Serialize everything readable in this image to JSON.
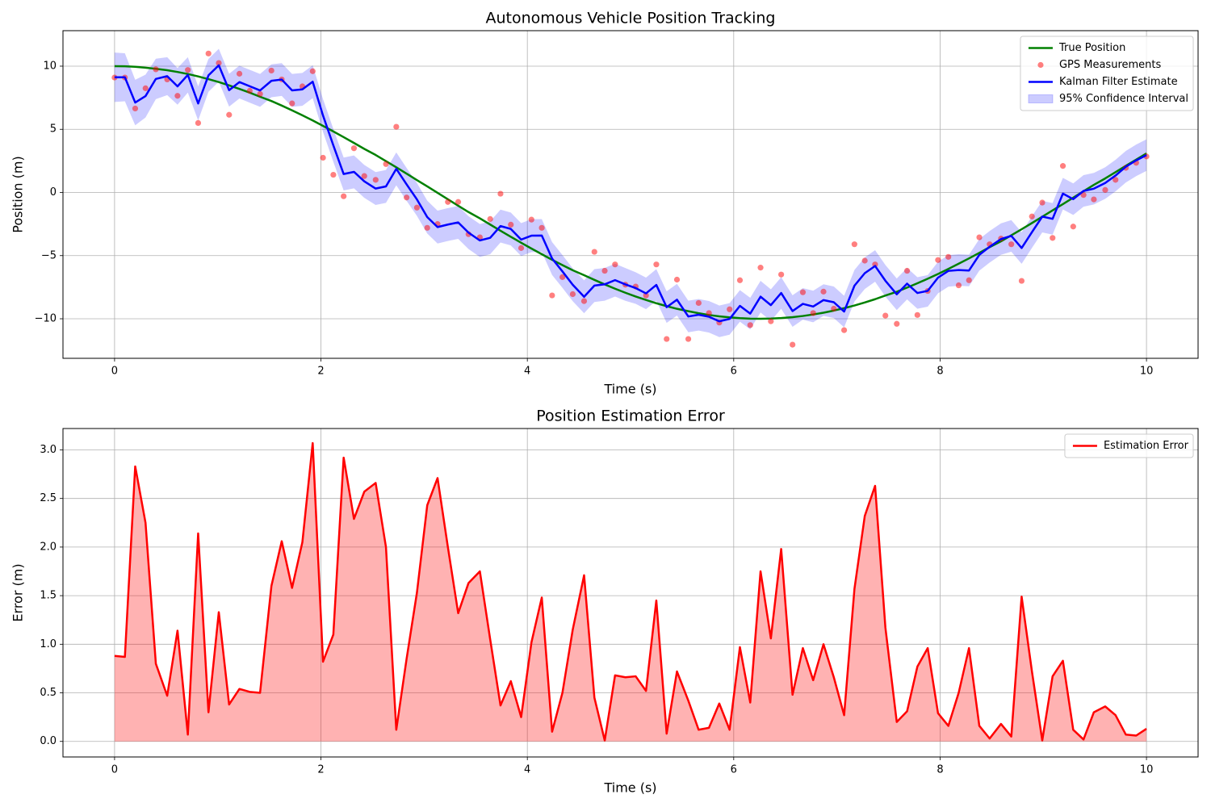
{
  "chart_data": [
    {
      "type": "line",
      "title": "Autonomous Vehicle Position Tracking",
      "xlabel": "Time (s)",
      "ylabel": "Position (m)",
      "x": [
        0,
        0.1,
        0.2,
        0.3,
        0.4,
        0.51,
        0.61,
        0.71,
        0.81,
        0.91,
        1.01,
        1.11,
        1.21,
        1.31,
        1.41,
        1.52,
        1.62,
        1.72,
        1.82,
        1.92,
        2.02,
        2.12,
        2.22,
        2.32,
        2.42,
        2.53,
        2.63,
        2.73,
        2.83,
        2.93,
        3.03,
        3.13,
        3.23,
        3.33,
        3.43,
        3.54,
        3.64,
        3.74,
        3.84,
        3.94,
        4.04,
        4.14,
        4.24,
        4.34,
        4.44,
        4.55,
        4.65,
        4.75,
        4.85,
        4.95,
        5.05,
        5.15,
        5.25,
        5.35,
        5.45,
        5.56,
        5.66,
        5.76,
        5.86,
        5.96,
        6.06,
        6.16,
        6.26,
        6.36,
        6.46,
        6.57,
        6.67,
        6.77,
        6.87,
        6.97,
        7.07,
        7.17,
        7.27,
        7.37,
        7.47,
        7.58,
        7.68,
        7.78,
        7.88,
        7.98,
        8.08,
        8.18,
        8.28,
        8.38,
        8.48,
        8.59,
        8.69,
        8.79,
        8.89,
        8.99,
        9.09,
        9.19,
        9.29,
        9.39,
        9.49,
        9.6,
        9.7,
        9.8,
        9.9,
        10
      ],
      "xlim": [
        -0.5,
        10.5
      ],
      "xticks": [
        0,
        2,
        4,
        6,
        8,
        10
      ],
      "ylim": [
        -13.13,
        12.81
      ],
      "yticks": [
        {
          "value": -10,
          "label": "−10"
        },
        {
          "value": -5,
          "label": "−5"
        },
        0,
        5,
        10
      ],
      "grid": true,
      "legend": "upper right",
      "series": [
        {
          "name": "True Position",
          "type": "line",
          "color": "#008000",
          "values": [
            10.0,
            9.99,
            9.95,
            9.88,
            9.79,
            9.68,
            9.54,
            9.38,
            9.19,
            8.97,
            8.74,
            8.48,
            8.2,
            7.9,
            7.58,
            7.24,
            6.88,
            6.5,
            6.11,
            5.7,
            5.27,
            4.83,
            4.38,
            3.92,
            3.45,
            2.97,
            2.48,
            1.99,
            1.49,
            0.98,
            0.48,
            -0.03,
            -0.54,
            -1.05,
            -1.55,
            -2.05,
            -2.54,
            -3.03,
            -3.51,
            -3.98,
            -4.44,
            -4.89,
            -5.33,
            -5.75,
            -6.16,
            -6.55,
            -6.92,
            -7.28,
            -7.62,
            -7.94,
            -8.24,
            -8.51,
            -8.77,
            -9.0,
            -9.21,
            -9.4,
            -9.56,
            -9.7,
            -9.81,
            -9.89,
            -9.95,
            -9.99,
            -10.0,
            -9.98,
            -9.94,
            -9.87,
            -9.78,
            -9.66,
            -9.52,
            -9.35,
            -9.16,
            -8.95,
            -8.71,
            -8.45,
            -8.16,
            -7.86,
            -7.53,
            -7.19,
            -6.83,
            -6.45,
            -6.05,
            -5.64,
            -5.22,
            -4.78,
            -4.33,
            -3.87,
            -3.39,
            -2.91,
            -2.42,
            -1.92,
            -1.42,
            -0.92,
            -0.41,
            0.1,
            0.6,
            1.11,
            1.61,
            2.11,
            2.6,
            3.09
          ]
        },
        {
          "name": "GPS Measurements",
          "type": "scatter",
          "color": "#ff0000",
          "alpha": 0.5,
          "values": [
            9.1,
            9.1,
            6.65,
            8.25,
            9.75,
            8.95,
            7.65,
            9.7,
            5.5,
            11.0,
            10.25,
            6.15,
            9.4,
            8.05,
            7.8,
            9.65,
            8.95,
            7.05,
            8.4,
            9.6,
            2.75,
            1.4,
            -0.3,
            3.5,
            1.3,
            1.0,
            2.25,
            5.2,
            -0.4,
            -1.2,
            -2.8,
            -2.5,
            -0.75,
            -0.75,
            -3.3,
            -3.55,
            -2.1,
            -0.1,
            -2.55,
            -4.4,
            -2.15,
            -2.8,
            -8.15,
            -6.7,
            -8.05,
            -8.6,
            -4.7,
            -6.2,
            -5.7,
            -7.3,
            -7.45,
            -8.15,
            -5.7,
            -11.6,
            -6.9,
            -11.6,
            -8.75,
            -9.55,
            -10.3,
            -9.25,
            -6.95,
            -10.5,
            -5.95,
            -10.2,
            -6.5,
            -12.05,
            -7.9,
            -9.55,
            -7.85,
            -9.2,
            -10.9,
            -4.1,
            -5.4,
            -5.7,
            -9.75,
            -10.4,
            -6.2,
            -9.7,
            -7.8,
            -5.35,
            -5.1,
            -7.35,
            -6.95,
            -3.55,
            -4.1,
            -3.65,
            -4.1,
            -7.0,
            -1.9,
            -0.8,
            -3.6,
            2.1,
            -2.7,
            -0.2,
            -0.55,
            0.2,
            1.0,
            1.95,
            2.35,
            2.85
          ]
        },
        {
          "name": "Kalman Filter Estimate",
          "type": "line",
          "color": "#0000ff",
          "values": [
            9.12,
            9.12,
            7.12,
            7.63,
            8.99,
            9.21,
            8.4,
            9.31,
            7.05,
            9.27,
            10.07,
            8.1,
            8.74,
            8.41,
            8.08,
            8.84,
            8.94,
            8.08,
            8.16,
            8.77,
            6.09,
            3.73,
            1.46,
            1.63,
            0.88,
            0.31,
            0.48,
            1.87,
            0.64,
            -0.55,
            -1.95,
            -2.74,
            -2.54,
            -2.37,
            -3.18,
            -3.8,
            -3.59,
            -2.66,
            -2.89,
            -3.73,
            -3.42,
            -3.41,
            -5.23,
            -6.25,
            -7.31,
            -8.26,
            -7.37,
            -7.27,
            -6.94,
            -7.28,
            -7.57,
            -7.99,
            -7.32,
            -9.08,
            -8.49,
            -9.82,
            -9.68,
            -9.84,
            -10.2,
            -10.01,
            -8.98,
            -9.59,
            -8.25,
            -8.92,
            -7.96,
            -9.39,
            -8.82,
            -9.03,
            -8.52,
            -8.69,
            -9.43,
            -7.38,
            -6.39,
            -5.82,
            -6.99,
            -8.06,
            -7.22,
            -7.96,
            -7.79,
            -6.74,
            -6.21,
            -6.14,
            -6.18,
            -4.94,
            -4.3,
            -3.69,
            -3.44,
            -4.4,
            -3.14,
            -1.91,
            -2.09,
            -0.09,
            -0.53,
            0.12,
            0.3,
            0.75,
            1.34,
            2.04,
            2.54,
            2.96
          ]
        },
        {
          "name": "95% Confidence Interval",
          "type": "band",
          "color": "#0000ff",
          "alpha": 0.2,
          "lower": [
            7.16,
            7.22,
            5.32,
            5.93,
            7.39,
            7.71,
            6.95,
            7.91,
            5.7,
            7.97,
            8.77,
            6.8,
            7.44,
            7.11,
            6.78,
            7.54,
            7.64,
            6.78,
            6.86,
            7.47,
            4.79,
            2.43,
            0.16,
            0.33,
            -0.42,
            -0.99,
            -0.82,
            0.57,
            -0.66,
            -1.85,
            -3.25,
            -4.04,
            -3.84,
            -3.67,
            -4.48,
            -5.1,
            -4.89,
            -3.96,
            -4.19,
            -5.03,
            -4.72,
            -4.71,
            -6.53,
            -7.55,
            -8.61,
            -9.56,
            -8.67,
            -8.57,
            -8.24,
            -8.58,
            -8.82,
            -9.24,
            -8.57,
            -10.33,
            -9.74,
            -11.07,
            -10.93,
            -11.09,
            -11.45,
            -11.26,
            -10.23,
            -10.84,
            -9.5,
            -10.17,
            -9.21,
            -10.64,
            -10.07,
            -10.28,
            -9.77,
            -9.94,
            -10.68,
            -8.63,
            -7.64,
            -7.07,
            -8.24,
            -9.31,
            -8.47,
            -9.21,
            -9.04,
            -7.99,
            -7.46,
            -7.39,
            -7.43,
            -6.19,
            -5.55,
            -4.94,
            -4.69,
            -5.65,
            -4.39,
            -3.16,
            -3.34,
            -1.34,
            -1.78,
            -1.13,
            -0.95,
            -0.5,
            0.09,
            0.79,
            1.29,
            1.71
          ],
          "upper": [
            11.08,
            11.02,
            8.92,
            9.33,
            10.59,
            10.71,
            9.85,
            10.71,
            8.4,
            10.57,
            11.37,
            9.4,
            10.04,
            9.71,
            9.38,
            10.14,
            10.24,
            9.38,
            9.46,
            10.07,
            7.39,
            5.03,
            2.76,
            2.93,
            2.18,
            1.61,
            1.78,
            3.17,
            1.94,
            0.75,
            -0.65,
            -1.44,
            -1.24,
            -1.07,
            -1.88,
            -2.5,
            -2.29,
            -1.36,
            -1.59,
            -2.43,
            -2.12,
            -2.11,
            -3.93,
            -4.95,
            -6.01,
            -6.96,
            -6.07,
            -5.97,
            -5.64,
            -5.98,
            -6.32,
            -6.74,
            -6.07,
            -7.83,
            -7.24,
            -8.57,
            -8.43,
            -8.59,
            -8.95,
            -8.76,
            -7.73,
            -8.34,
            -7.0,
            -7.67,
            -6.71,
            -8.14,
            -7.57,
            -7.78,
            -7.27,
            -7.44,
            -8.18,
            -6.13,
            -5.14,
            -4.57,
            -5.74,
            -6.81,
            -5.97,
            -6.71,
            -6.54,
            -5.49,
            -4.96,
            -4.89,
            -4.93,
            -3.69,
            -3.05,
            -2.44,
            -2.19,
            -3.15,
            -1.89,
            -0.66,
            -0.84,
            1.16,
            0.72,
            1.37,
            1.55,
            2.0,
            2.59,
            3.29,
            3.79,
            4.21
          ]
        }
      ]
    },
    {
      "type": "area",
      "title": "Position Estimation Error",
      "xlabel": "Time (s)",
      "ylabel": "Error (m)",
      "x": [
        0,
        0.1,
        0.2,
        0.3,
        0.4,
        0.51,
        0.61,
        0.71,
        0.81,
        0.91,
        1.01,
        1.11,
        1.21,
        1.31,
        1.41,
        1.52,
        1.62,
        1.72,
        1.82,
        1.92,
        2.02,
        2.12,
        2.22,
        2.32,
        2.42,
        2.53,
        2.63,
        2.73,
        2.83,
        2.93,
        3.03,
        3.13,
        3.23,
        3.33,
        3.43,
        3.54,
        3.64,
        3.74,
        3.84,
        3.94,
        4.04,
        4.14,
        4.24,
        4.34,
        4.44,
        4.55,
        4.65,
        4.75,
        4.85,
        4.95,
        5.05,
        5.15,
        5.25,
        5.35,
        5.45,
        5.56,
        5.66,
        5.76,
        5.86,
        5.96,
        6.06,
        6.16,
        6.26,
        6.36,
        6.46,
        6.57,
        6.67,
        6.77,
        6.87,
        6.97,
        7.07,
        7.17,
        7.27,
        7.37,
        7.47,
        7.58,
        7.68,
        7.78,
        7.88,
        7.98,
        8.08,
        8.18,
        8.28,
        8.38,
        8.48,
        8.59,
        8.69,
        8.79,
        8.89,
        8.99,
        9.09,
        9.19,
        9.29,
        9.39,
        9.49,
        9.6,
        9.7,
        9.8,
        9.9,
        10
      ],
      "xlim": [
        -0.5,
        10.5
      ],
      "xticks": [
        0,
        2,
        4,
        6,
        8,
        10
      ],
      "ylim": [
        -0.16,
        3.22
      ],
      "yticks": [
        {
          "value": 0,
          "label": "0.0"
        },
        {
          "value": 0.5,
          "label": "0.5"
        },
        {
          "value": 1,
          "label": "1.0"
        },
        {
          "value": 1.5,
          "label": "1.5"
        },
        {
          "value": 2,
          "label": "2.0"
        },
        {
          "value": 2.5,
          "label": "2.5"
        },
        {
          "value": 3,
          "label": "3.0"
        }
      ],
      "grid": true,
      "legend": "upper right",
      "series": [
        {
          "name": "Estimation Error",
          "type": "area",
          "color": "#ff0000",
          "alpha": 0.3,
          "values": [
            0.88,
            0.87,
            2.83,
            2.25,
            0.8,
            0.47,
            1.14,
            0.07,
            2.14,
            0.3,
            1.33,
            0.38,
            0.54,
            0.51,
            0.5,
            1.6,
            2.06,
            1.58,
            2.05,
            3.07,
            0.82,
            1.1,
            2.92,
            2.29,
            2.57,
            2.66,
            2.0,
            0.12,
            0.85,
            1.53,
            2.43,
            2.71,
            2.0,
            1.32,
            1.63,
            1.75,
            1.05,
            0.37,
            0.62,
            0.25,
            1.02,
            1.48,
            0.1,
            0.5,
            1.15,
            1.71,
            0.45,
            0.01,
            0.68,
            0.66,
            0.67,
            0.52,
            1.45,
            0.08,
            0.72,
            0.42,
            0.12,
            0.14,
            0.39,
            0.12,
            0.97,
            0.4,
            1.75,
            1.06,
            1.98,
            0.48,
            0.96,
            0.63,
            1.0,
            0.66,
            0.27,
            1.57,
            2.32,
            2.63,
            1.17,
            0.2,
            0.31,
            0.77,
            0.96,
            0.29,
            0.16,
            0.5,
            0.96,
            0.16,
            0.03,
            0.18,
            0.05,
            1.49,
            0.72,
            0.01,
            0.67,
            0.83,
            0.12,
            0.02,
            0.3,
            0.36,
            0.27,
            0.07,
            0.06,
            0.13
          ]
        }
      ]
    }
  ]
}
